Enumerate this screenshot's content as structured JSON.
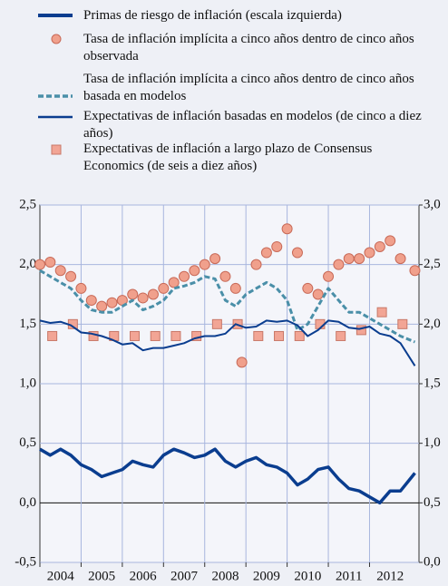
{
  "chart_data": {
    "type": "line",
    "xlim": [
      2004,
      2013.2
    ],
    "xticks": [
      2004,
      2005,
      2006,
      2007,
      2008,
      2009,
      2010,
      2011,
      2012
    ],
    "ylim": [
      -0.5,
      2.5
    ],
    "yticks": [
      {
        "value": -0.5,
        "label": "-0,5"
      },
      {
        "value": 0,
        "label": "0,0"
      },
      {
        "value": 0.5,
        "label": "0,5"
      },
      {
        "value": 1,
        "label": "1,0"
      },
      {
        "value": 1.5,
        "label": "1,5"
      },
      {
        "value": 2,
        "label": "2,0"
      },
      {
        "value": 2.5,
        "label": "2,5"
      }
    ],
    "y2lim": [
      0,
      3
    ],
    "y2ticks": [
      {
        "value": 0,
        "label": "0,0"
      },
      {
        "value": 0.5,
        "label": "0,5"
      },
      {
        "value": 1,
        "label": "1,0"
      },
      {
        "value": 1.5,
        "label": "1,5"
      },
      {
        "value": 2,
        "label": "2,0"
      },
      {
        "value": 2.5,
        "label": "2,5"
      },
      {
        "value": 3,
        "label": "3,0"
      }
    ],
    "grid": true,
    "series": [
      {
        "name": "Primas de riesgo de inflación (escala izquierda)",
        "color": "#0a3d8f",
        "style": "thick-line",
        "x": [
          2004,
          2004.25,
          2004.5,
          2004.75,
          2005,
          2005.25,
          2005.5,
          2005.75,
          2006,
          2006.25,
          2006.5,
          2006.75,
          2007,
          2007.25,
          2007.5,
          2007.75,
          2008,
          2008.25,
          2008.5,
          2008.75,
          2009,
          2009.25,
          2009.5,
          2009.75,
          2010,
          2010.25,
          2010.5,
          2010.75,
          2011,
          2011.25,
          2011.5,
          2011.75,
          2012,
          2012.25,
          2012.5,
          2012.75,
          2013.1
        ],
        "values": [
          0.45,
          0.4,
          0.45,
          0.4,
          0.32,
          0.28,
          0.22,
          0.25,
          0.28,
          0.35,
          0.32,
          0.3,
          0.4,
          0.45,
          0.42,
          0.38,
          0.4,
          0.45,
          0.35,
          0.3,
          0.35,
          0.38,
          0.32,
          0.3,
          0.25,
          0.15,
          0.2,
          0.28,
          0.3,
          0.2,
          0.12,
          0.1,
          0.05,
          0.0,
          0.1,
          0.1,
          0.25
        ]
      },
      {
        "name": "Tasa de inflación implícita a cinco años dentro de cinco años observada",
        "color": "#f0a08c",
        "style": "circle",
        "axis": "y2",
        "x": [
          2004,
          2004.25,
          2004.5,
          2004.75,
          2005,
          2005.25,
          2005.5,
          2005.75,
          2006,
          2006.25,
          2006.5,
          2006.75,
          2007,
          2007.25,
          2007.5,
          2007.75,
          2008,
          2008.25,
          2008.5,
          2008.75,
          2008.9,
          2009.25,
          2009.5,
          2009.75,
          2010,
          2010.25,
          2010.5,
          2010.75,
          2011,
          2011.25,
          2011.5,
          2011.75,
          2012,
          2012.25,
          2012.5,
          2012.75,
          2013.1
        ],
        "values": [
          2.5,
          2.52,
          2.45,
          2.4,
          2.3,
          2.2,
          2.15,
          2.18,
          2.2,
          2.25,
          2.22,
          2.25,
          2.3,
          2.35,
          2.4,
          2.45,
          2.5,
          2.55,
          2.4,
          2.3,
          1.68,
          2.5,
          2.6,
          2.65,
          2.8,
          2.6,
          2.3,
          2.25,
          2.4,
          2.5,
          2.55,
          2.55,
          2.6,
          2.65,
          2.7,
          2.55,
          2.45
        ]
      },
      {
        "name": "Tasa de inflación implícita a cinco años dentro de cinco años basada en modelos",
        "color": "#4a8fa8",
        "style": "dashed",
        "axis": "y2",
        "x": [
          2004,
          2004.25,
          2004.5,
          2004.75,
          2005,
          2005.25,
          2005.5,
          2005.75,
          2006,
          2006.25,
          2006.5,
          2006.75,
          2007,
          2007.25,
          2007.5,
          2007.75,
          2008,
          2008.25,
          2008.5,
          2008.75,
          2009,
          2009.25,
          2009.5,
          2009.75,
          2010,
          2010.25,
          2010.5,
          2010.75,
          2011,
          2011.25,
          2011.5,
          2011.75,
          2012,
          2012.25,
          2012.5,
          2012.75,
          2013.1
        ],
        "values": [
          2.45,
          2.4,
          2.35,
          2.3,
          2.2,
          2.12,
          2.1,
          2.1,
          2.15,
          2.2,
          2.12,
          2.15,
          2.2,
          2.3,
          2.32,
          2.35,
          2.4,
          2.38,
          2.2,
          2.15,
          2.25,
          2.3,
          2.35,
          2.3,
          2.2,
          1.95,
          2.0,
          2.15,
          2.3,
          2.2,
          2.1,
          2.1,
          2.05,
          2.0,
          1.95,
          1.9,
          1.85
        ]
      },
      {
        "name": "Expectativas de inflación basadas en modelos (de cinco a diez años)",
        "color": "#0a3d8f",
        "style": "line",
        "axis": "y2",
        "x": [
          2004,
          2004.25,
          2004.5,
          2004.75,
          2005,
          2005.25,
          2005.5,
          2005.75,
          2006,
          2006.25,
          2006.5,
          2006.75,
          2007,
          2007.25,
          2007.5,
          2007.75,
          2008,
          2008.25,
          2008.5,
          2008.75,
          2009,
          2009.25,
          2009.5,
          2009.75,
          2010,
          2010.25,
          2010.5,
          2010.75,
          2011,
          2011.25,
          2011.5,
          2011.75,
          2012,
          2012.25,
          2012.5,
          2012.75,
          2013.1
        ],
        "values": [
          2.03,
          2.01,
          2.02,
          1.99,
          1.93,
          1.92,
          1.9,
          1.87,
          1.83,
          1.84,
          1.78,
          1.8,
          1.8,
          1.82,
          1.84,
          1.88,
          1.9,
          1.9,
          1.92,
          2.0,
          1.97,
          1.98,
          2.03,
          2.02,
          2.03,
          1.99,
          1.9,
          1.95,
          2.03,
          2.02,
          1.97,
          1.96,
          1.98,
          1.92,
          1.9,
          1.84,
          1.65
        ]
      },
      {
        "name": "Expectativas de inflación a largo plazo de Consensus Economics (de seis a diez años)",
        "color": "#f2a595",
        "style": "square",
        "axis": "y2",
        "x": [
          2004.3,
          2004.8,
          2005.3,
          2005.8,
          2006.3,
          2006.8,
          2007.3,
          2007.8,
          2008.3,
          2008.8,
          2009.3,
          2009.8,
          2010.3,
          2010.8,
          2011.3,
          2011.8,
          2012.3,
          2012.8
        ],
        "values": [
          1.9,
          2.0,
          1.9,
          1.9,
          1.9,
          1.9,
          1.9,
          1.9,
          2.0,
          2.0,
          1.9,
          1.9,
          1.9,
          2.0,
          1.9,
          1.95,
          2.1,
          2.0
        ]
      }
    ]
  }
}
